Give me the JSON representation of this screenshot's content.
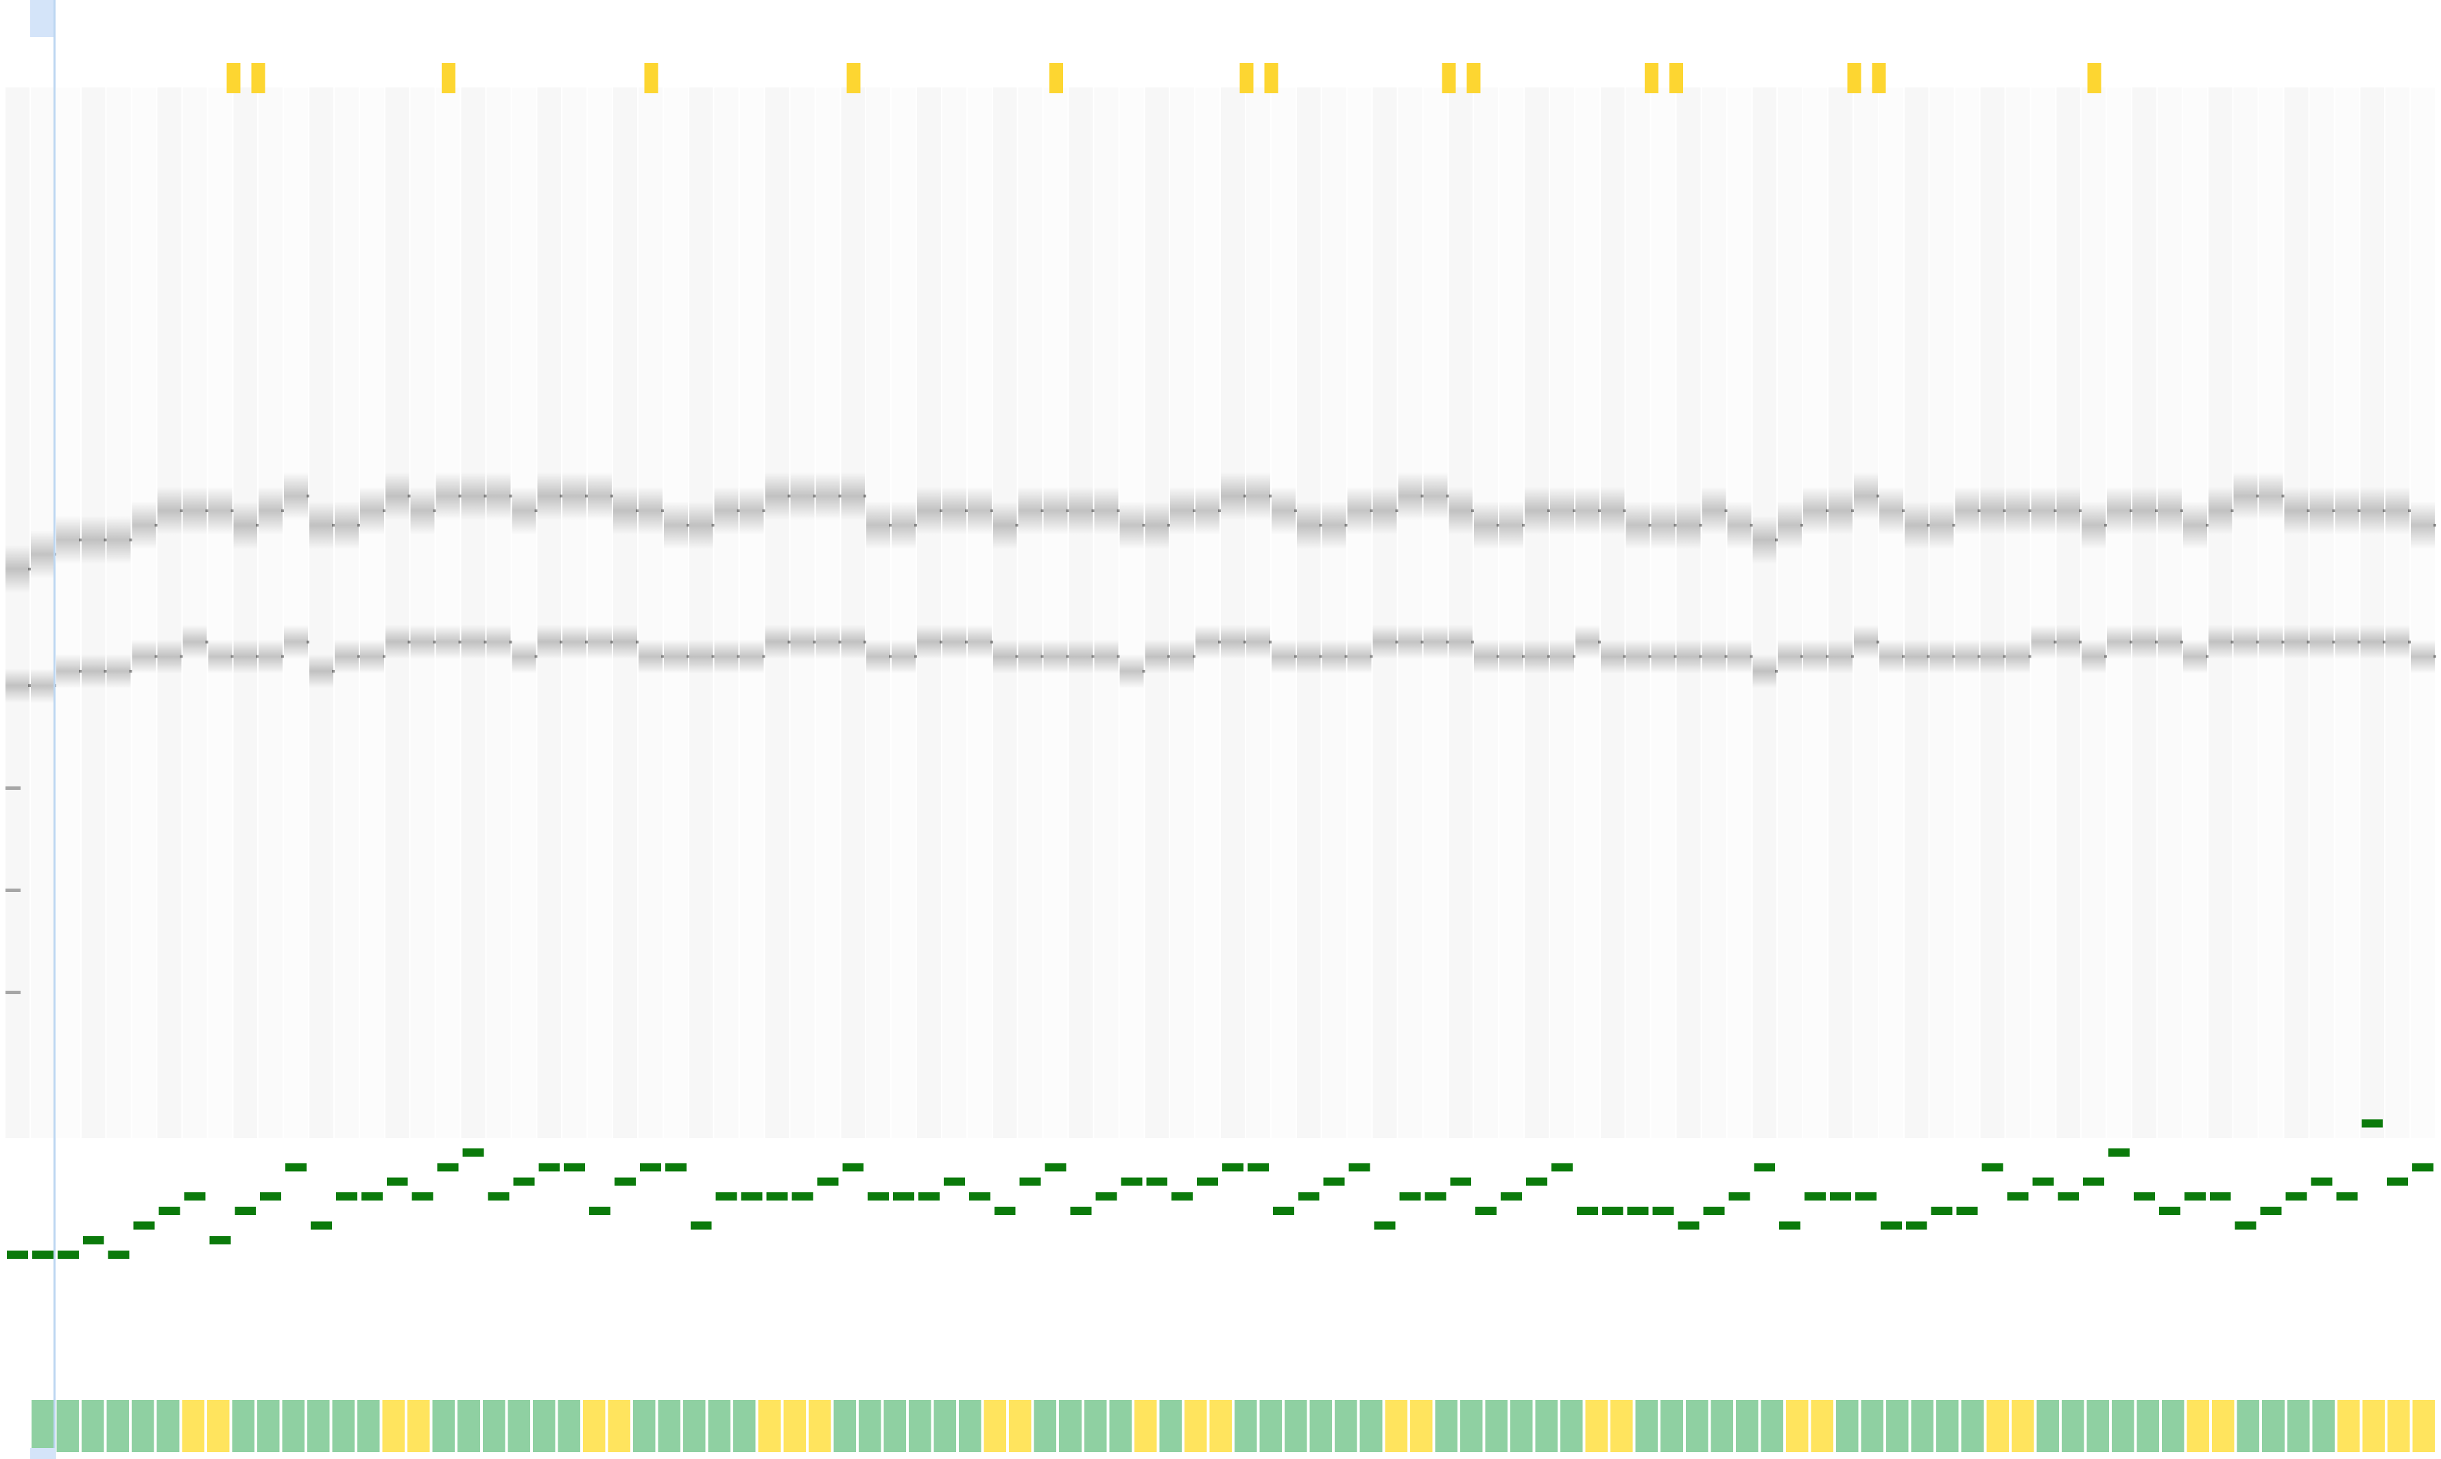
{
  "colors": {
    "background": "#ffffff",
    "spectrogram_ink": "#9a9a9a",
    "pitch_line": "#0b7a0b",
    "beat_green": "#8fd0a2",
    "beat_yellow": "#ffe45e",
    "onset_marker": "#fdd631",
    "playhead_line": "#bcd6f1",
    "playhead_handle": "#d4e4f9"
  },
  "chart_data": {
    "type": "heatmap",
    "title": "",
    "xlabel": "",
    "ylabel": "",
    "grid": false,
    "legend": "none",
    "frames": 96,
    "ylim": [
      0,
      1
    ],
    "playhead_frame": 1,
    "spectrogram": {
      "description_free": true,
      "harmonic_bands": [
        {
          "values": [
            0.39,
            0.38,
            0.37,
            0.37,
            0.37,
            0.36,
            0.35,
            0.35,
            0.35,
            0.36,
            0.35,
            0.34,
            0.36,
            0.36,
            0.35,
            0.34,
            0.35,
            0.34,
            0.34,
            0.34,
            0.35,
            0.34,
            0.34,
            0.34,
            0.35,
            0.35,
            0.36,
            0.36,
            0.35,
            0.35,
            0.34,
            0.34,
            0.34,
            0.34,
            0.36,
            0.36,
            0.35,
            0.35,
            0.35,
            0.36,
            0.35,
            0.35,
            0.35,
            0.35,
            0.36,
            0.36,
            0.35,
            0.35,
            0.34,
            0.34,
            0.35,
            0.36,
            0.36,
            0.35,
            0.35,
            0.34,
            0.34,
            0.35,
            0.36,
            0.36,
            0.35,
            0.35,
            0.35,
            0.35,
            0.36,
            0.36,
            0.36,
            0.35,
            0.36,
            0.37,
            0.36,
            0.35,
            0.35,
            0.34,
            0.35,
            0.36,
            0.36,
            0.35,
            0.35,
            0.35,
            0.35,
            0.35,
            0.36,
            0.35,
            0.35,
            0.35,
            0.36,
            0.35,
            0.34,
            0.34,
            0.35,
            0.35,
            0.35,
            0.35,
            0.35,
            0.36
          ]
        },
        {
          "values": [
            0.47,
            0.47,
            0.46,
            0.46,
            0.46,
            0.45,
            0.45,
            0.44,
            0.45,
            0.45,
            0.45,
            0.44,
            0.46,
            0.45,
            0.45,
            0.44,
            0.44,
            0.44,
            0.44,
            0.44,
            0.45,
            0.44,
            0.44,
            0.44,
            0.44,
            0.45,
            0.45,
            0.45,
            0.45,
            0.45,
            0.44,
            0.44,
            0.44,
            0.44,
            0.45,
            0.45,
            0.44,
            0.44,
            0.44,
            0.45,
            0.45,
            0.45,
            0.45,
            0.45,
            0.46,
            0.45,
            0.45,
            0.44,
            0.44,
            0.44,
            0.45,
            0.45,
            0.45,
            0.45,
            0.44,
            0.44,
            0.44,
            0.44,
            0.45,
            0.45,
            0.45,
            0.45,
            0.44,
            0.45,
            0.45,
            0.45,
            0.45,
            0.45,
            0.45,
            0.46,
            0.45,
            0.45,
            0.45,
            0.44,
            0.45,
            0.45,
            0.45,
            0.45,
            0.45,
            0.45,
            0.44,
            0.44,
            0.45,
            0.44,
            0.44,
            0.44,
            0.45,
            0.44,
            0.44,
            0.44,
            0.44,
            0.44,
            0.44,
            0.44,
            0.44,
            0.45
          ]
        }
      ]
    },
    "pitch_contour": [
      0.86,
      0.86,
      0.86,
      0.85,
      0.86,
      0.84,
      0.83,
      0.82,
      0.85,
      0.83,
      0.82,
      0.8,
      0.84,
      0.82,
      0.82,
      0.81,
      0.82,
      0.8,
      0.79,
      0.82,
      0.81,
      0.8,
      0.8,
      0.83,
      0.81,
      0.8,
      0.8,
      0.84,
      0.82,
      0.82,
      0.82,
      0.82,
      0.81,
      0.8,
      0.82,
      0.82,
      0.82,
      0.81,
      0.82,
      0.83,
      0.81,
      0.8,
      0.83,
      0.82,
      0.81,
      0.81,
      0.82,
      0.81,
      0.8,
      0.8,
      0.83,
      0.82,
      0.81,
      0.8,
      0.84,
      0.82,
      0.82,
      0.81,
      0.83,
      0.82,
      0.81,
      0.8,
      0.83,
      0.83,
      0.83,
      0.83,
      0.84,
      0.83,
      0.82,
      0.8,
      0.84,
      0.82,
      0.82,
      0.82,
      0.84,
      0.84,
      0.83,
      0.83,
      0.8,
      0.82,
      0.81,
      0.82,
      0.81,
      0.79,
      0.82,
      0.83,
      0.82,
      0.82,
      0.84,
      0.83,
      0.82,
      0.81,
      0.82,
      0.77,
      0.81,
      0.8
    ],
    "beats": [
      "g",
      "g",
      "g",
      "g",
      "g",
      "g",
      "y",
      "y",
      "g",
      "g",
      "g",
      "g",
      "g",
      "g",
      "y",
      "y",
      "g",
      "g",
      "g",
      "g",
      "g",
      "g",
      "y",
      "y",
      "g",
      "g",
      "g",
      "g",
      "g",
      "y",
      "y",
      "y",
      "g",
      "g",
      "g",
      "g",
      "g",
      "g",
      "y",
      "y",
      "g",
      "g",
      "g",
      "g",
      "y",
      "g",
      "y",
      "y",
      "g",
      "g",
      "g",
      "g",
      "g",
      "g",
      "y",
      "y",
      "g",
      "g",
      "g",
      "g",
      "g",
      "g",
      "y",
      "y",
      "g",
      "g",
      "g",
      "g",
      "g",
      "g",
      "y",
      "y",
      "g",
      "g",
      "g",
      "g",
      "g",
      "g",
      "y",
      "y",
      "g",
      "g",
      "g",
      "g",
      "g",
      "g",
      "y",
      "y",
      "g",
      "g",
      "g",
      "g",
      "y",
      "y",
      "y",
      "y"
    ],
    "onset_markers": [
      {
        "frame": 9,
        "count": 2
      },
      {
        "frame": 17,
        "count": 1
      },
      {
        "frame": 25,
        "count": 1
      },
      {
        "frame": 33,
        "count": 1
      },
      {
        "frame": 41,
        "count": 1
      },
      {
        "frame": 49,
        "count": 2
      },
      {
        "frame": 57,
        "count": 2
      },
      {
        "frame": 65,
        "count": 2
      },
      {
        "frame": 73,
        "count": 2
      },
      {
        "frame": 82,
        "count": 1
      }
    ]
  }
}
